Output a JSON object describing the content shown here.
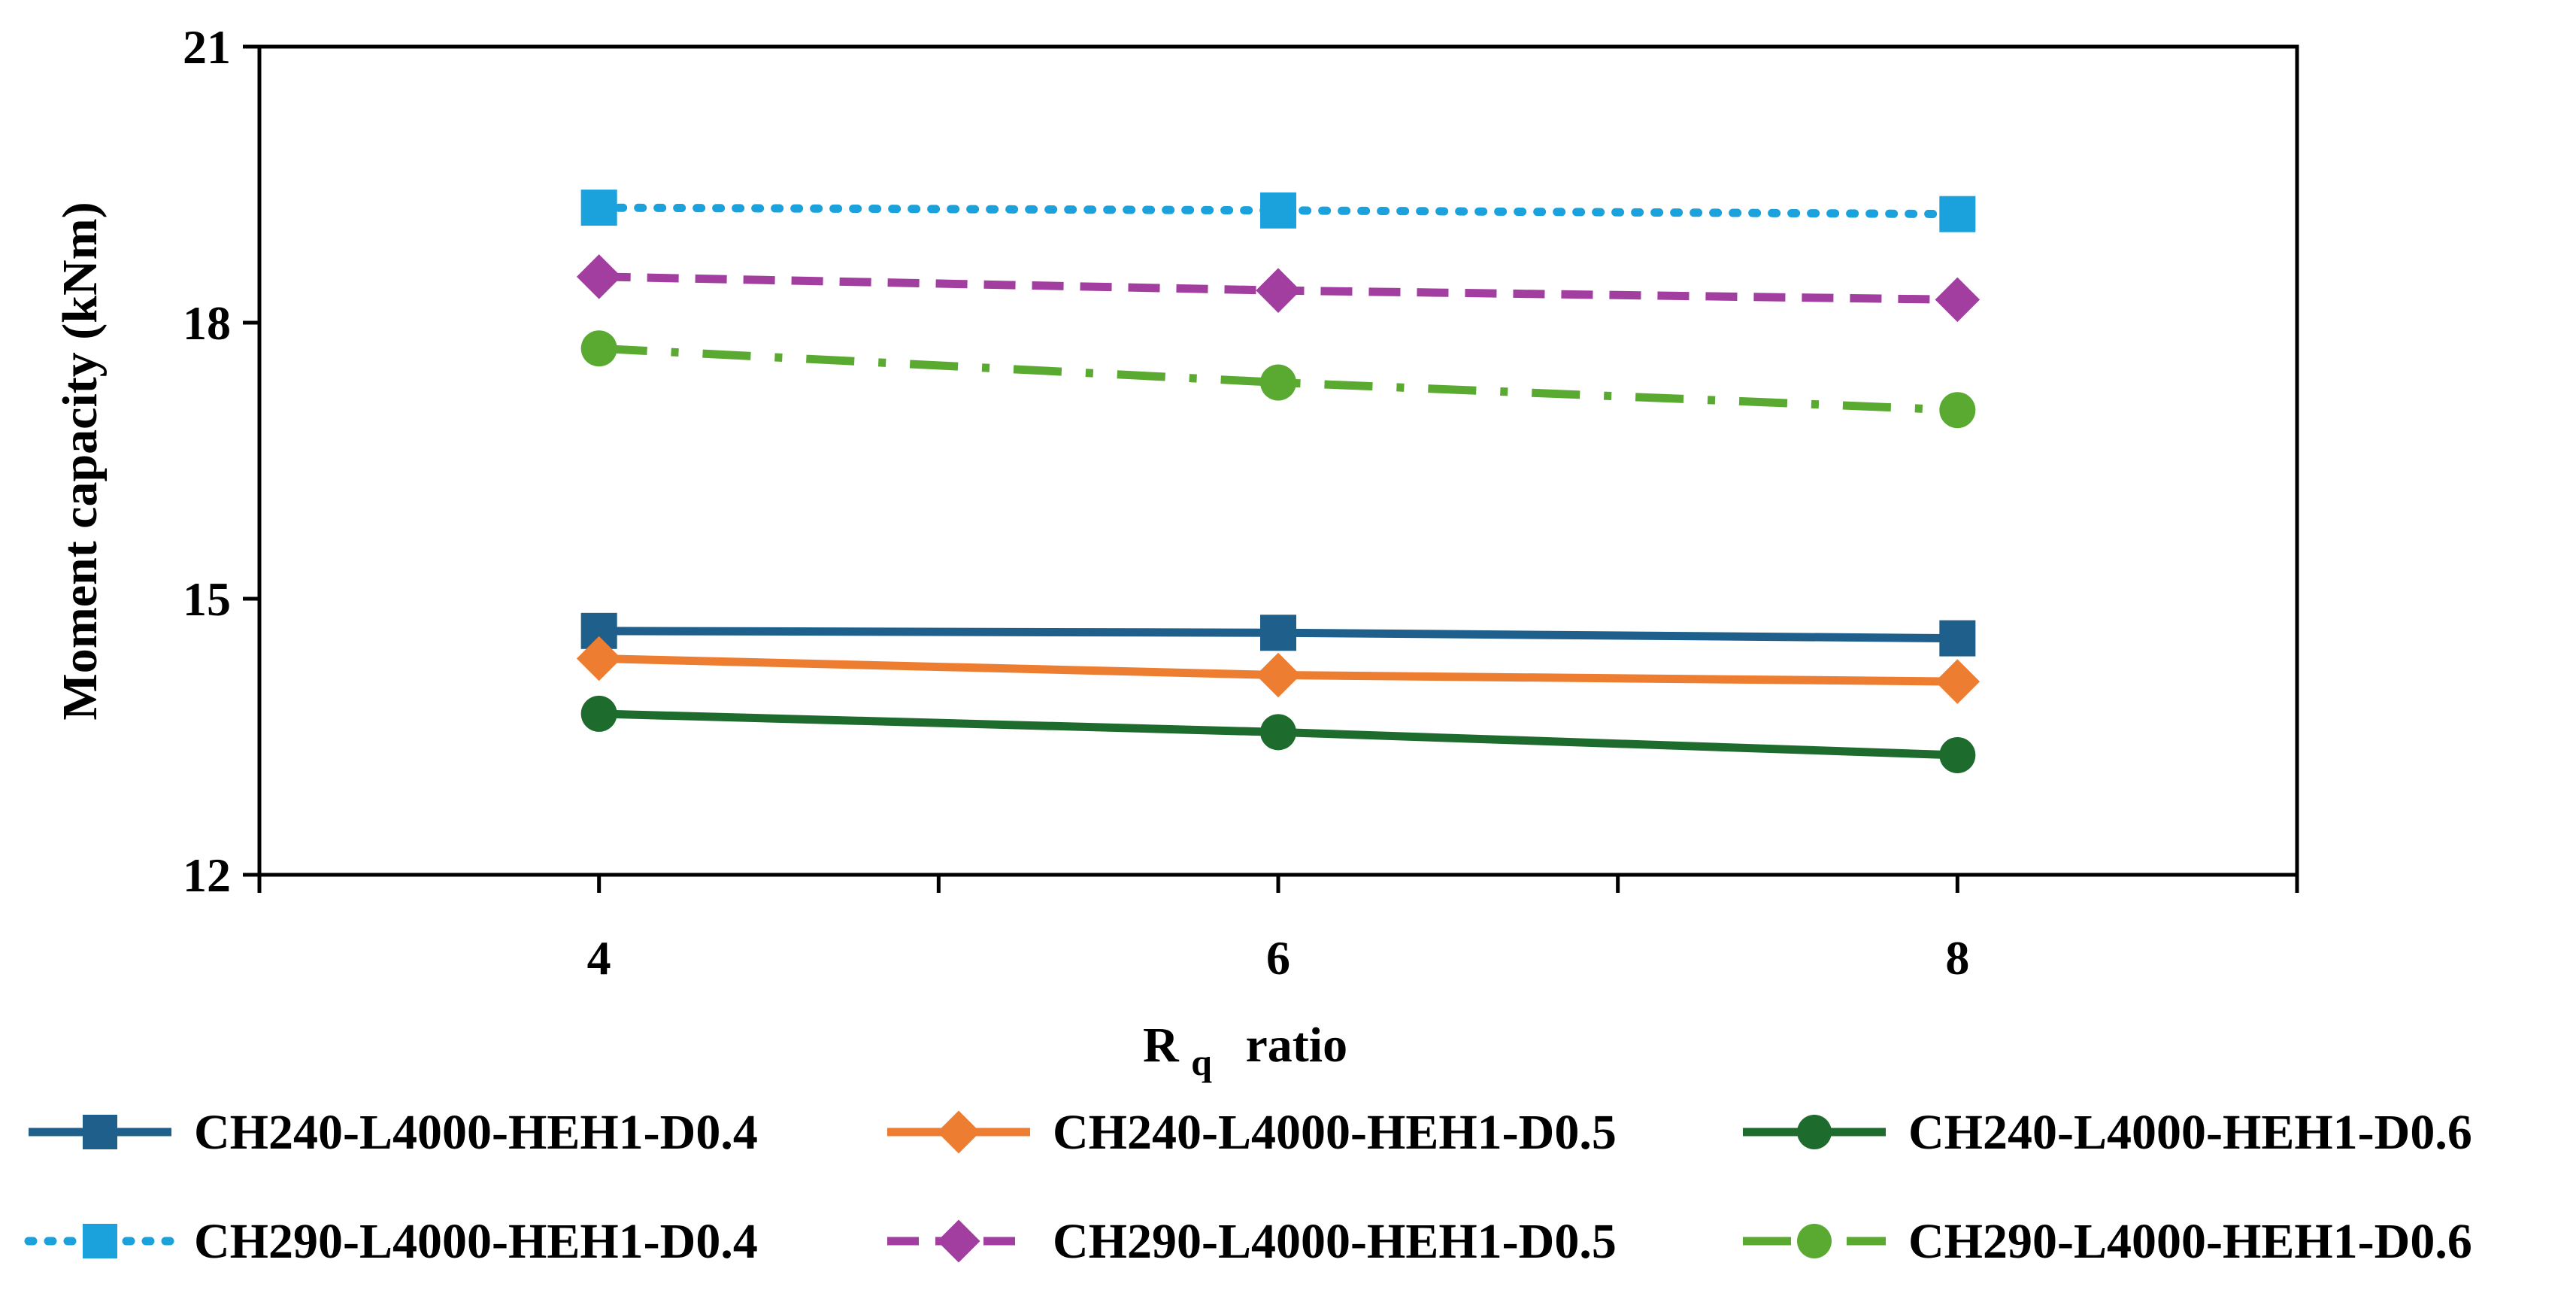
{
  "chart_data": {
    "type": "line",
    "title": "",
    "xlabel_main": "R",
    "xlabel_sub": "q",
    "xlabel_rest": "ratio",
    "ylabel": "Moment capacity (kNm)",
    "xlim": [
      3,
      9
    ],
    "ylim": [
      12,
      21
    ],
    "x_tick_values": [
      3,
      4,
      5,
      6,
      7,
      8,
      9
    ],
    "x_tick_labels": [
      "4",
      "6",
      "8"
    ],
    "x_label_values": [
      4,
      6,
      8
    ],
    "y_tick_labels": [
      "12",
      "15",
      "18",
      "21"
    ],
    "y_tick_values": [
      12,
      15,
      18,
      21
    ],
    "x": [
      4,
      6,
      8
    ],
    "series": [
      {
        "name": "CH240-L4000-HEH1-D0.4",
        "values": [
          14.65,
          14.63,
          14.57
        ],
        "color": "#1f5f8b",
        "dash": "solid",
        "marker": "square"
      },
      {
        "name": "CH240-L4000-HEH1-D0.5",
        "values": [
          14.35,
          14.17,
          14.1
        ],
        "color": "#ed7d31",
        "dash": "solid",
        "marker": "diamond"
      },
      {
        "name": "CH240-L4000-HEH1-D0.6",
        "values": [
          13.75,
          13.55,
          13.3
        ],
        "color": "#1e6b2e",
        "dash": "solid",
        "marker": "circle"
      },
      {
        "name": "CH290-L4000-HEH1-D0.4",
        "values": [
          19.25,
          19.22,
          19.18
        ],
        "color": "#1ba1dc",
        "dash": "dotted",
        "marker": "square"
      },
      {
        "name": "CH290-L4000-HEH1-D0.5",
        "values": [
          18.5,
          18.35,
          18.25
        ],
        "color": "#a33ea1",
        "dash": "dashed",
        "marker": "diamond"
      },
      {
        "name": "CH290-L4000-HEH1-D0.6",
        "values": [
          17.72,
          17.35,
          17.05
        ],
        "color": "#5aaa32",
        "dash": "dashdot",
        "marker": "circle"
      }
    ]
  }
}
